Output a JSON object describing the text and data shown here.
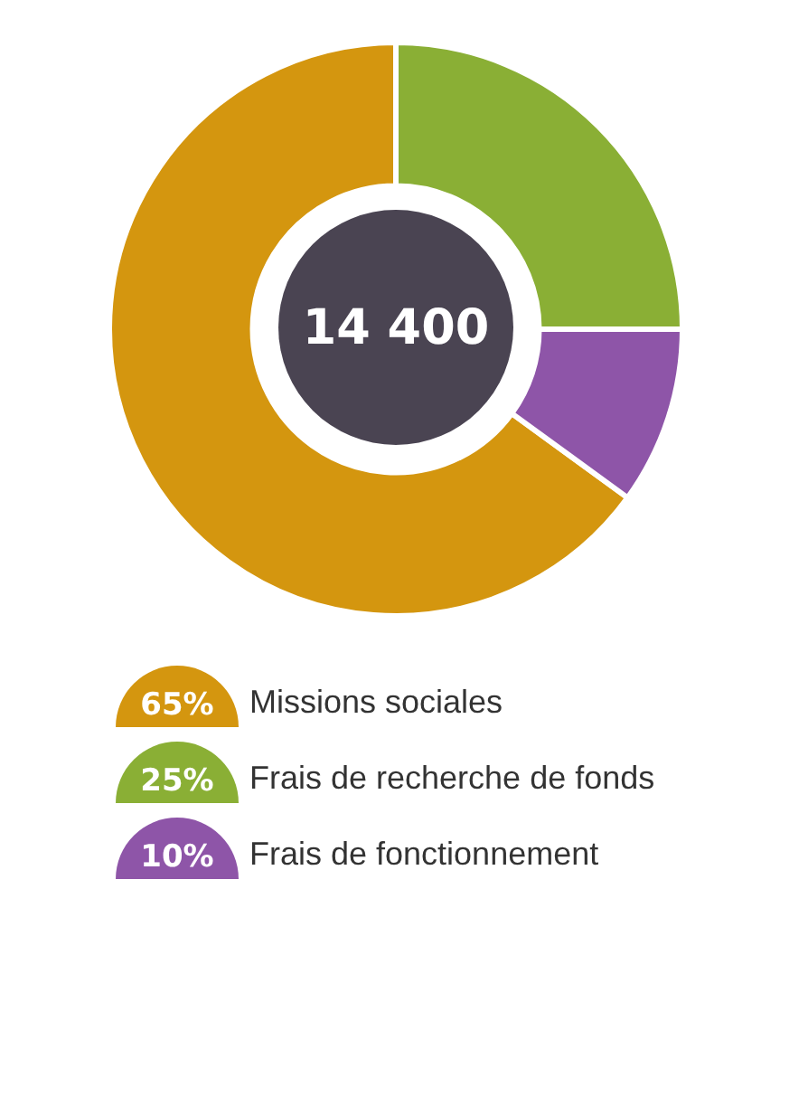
{
  "chart_data": {
    "type": "donut",
    "categories": [
      "Missions sociales",
      "Frais de recherche de fonds",
      "Frais de fonctionnement"
    ],
    "values": [
      65,
      25,
      10
    ],
    "colors": [
      "#d4960f",
      "#8aaf35",
      "#8e55a8"
    ],
    "value_labels": [
      "65%",
      "25%",
      "10%"
    ],
    "annotations": [
      "14 400"
    ],
    "legend": "bottom"
  }
}
